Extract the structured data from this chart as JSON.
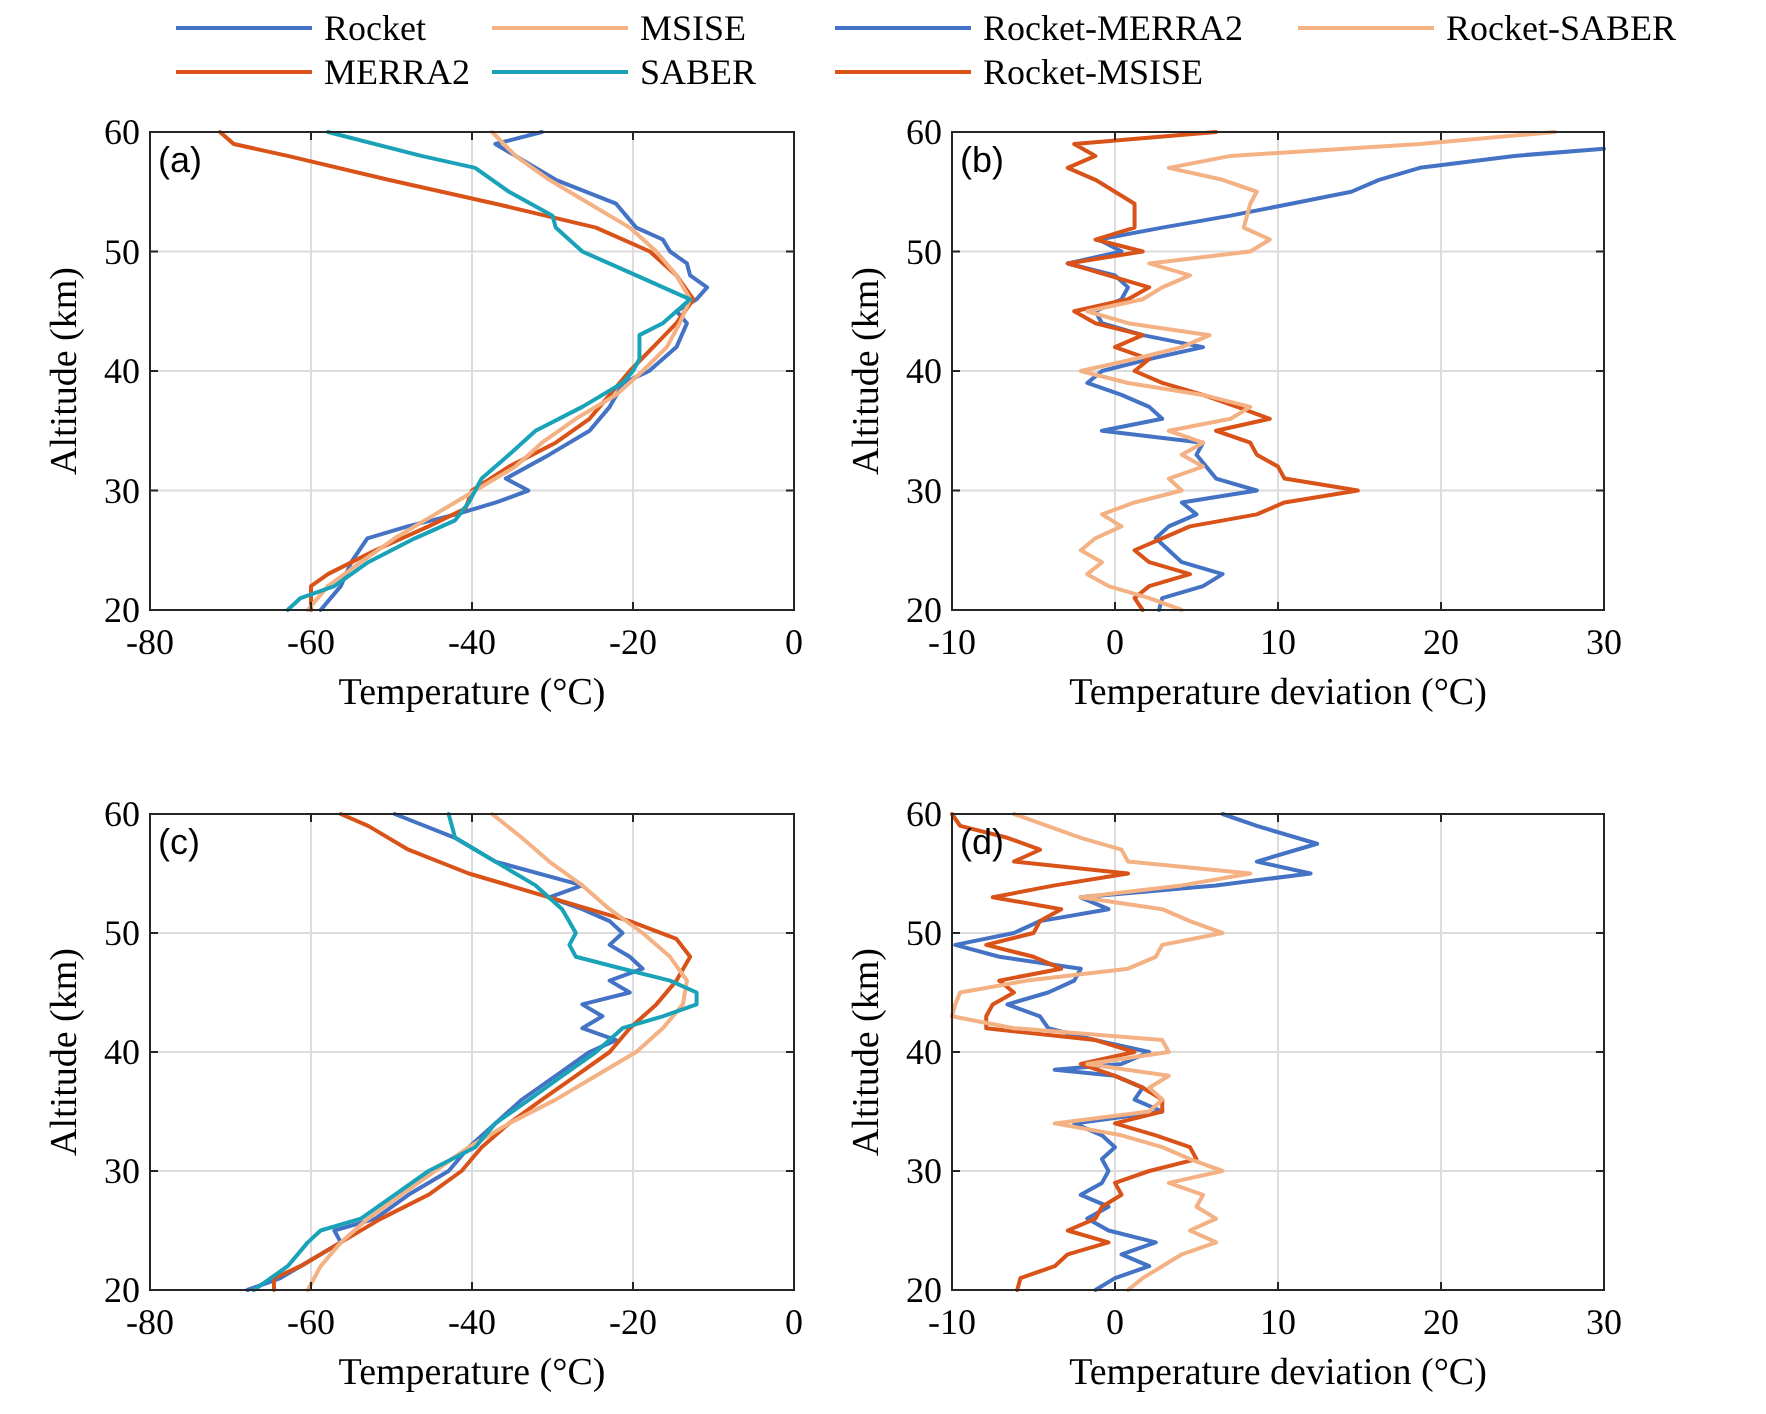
{
  "chart_data": [
    {
      "type": "line",
      "xlabel": "Temperature (°C)",
      "ylabel": "Altitude (km)",
      "annotations": [
        "(a)"
      ],
      "xlim": [
        -80,
        0
      ],
      "xticks": [
        -80,
        -60,
        -40,
        -20,
        0
      ],
      "ylim": [
        20,
        60
      ],
      "yticks": [
        20,
        30,
        40,
        50,
        60
      ],
      "grid": true,
      "legend": "top",
      "line_style": "solid",
      "series": [
        {
          "name": "Rocket",
          "color": "#4472c4",
          "x": [
            -58.8,
            -56.3,
            -55,
            -53,
            -48,
            -42,
            -37,
            -33,
            -35.8,
            -30.4,
            -25.4,
            -22.9,
            -21.2,
            -18,
            -14.6,
            -13.3,
            -14.6,
            -12.1,
            -10.8,
            -12.9,
            -13.3,
            -15.4,
            -16.3,
            -19.6,
            -22.1,
            -29.6,
            -34.6,
            -37.1,
            -31.3
          ],
          "values": [
            20,
            22,
            24,
            26,
            27,
            28,
            29,
            30,
            31,
            33,
            35,
            37,
            39,
            40,
            42,
            44,
            45,
            46,
            47,
            48,
            49,
            50,
            51,
            52,
            54,
            56,
            58,
            59,
            60
          ]
        },
        {
          "name": "MERRA2",
          "color": "#d95319",
          "x": [
            -60,
            -60,
            -57.9,
            -52,
            -45.4,
            -40.8,
            -40,
            -35.4,
            -29.6,
            -25.4,
            -22.9,
            -20.4,
            -17.5,
            -14.6,
            -12.5,
            -14.6,
            -17.9,
            -24.6,
            -37.1,
            -50.4,
            -62.9,
            -69.6,
            -71.3
          ],
          "values": [
            20,
            22,
            23,
            25,
            27,
            28.5,
            30,
            32,
            34,
            36,
            38,
            40,
            42,
            44,
            46,
            48,
            50,
            52,
            54,
            56,
            58,
            59,
            60
          ]
        },
        {
          "name": "MSISE",
          "color": "#f4b183",
          "x": [
            -60.4,
            -57.9,
            -53.8,
            -49.6,
            -44.6,
            -39.6,
            -34.6,
            -31.3,
            -27.1,
            -22.1,
            -18.8,
            -15.8,
            -14.2,
            -12.9,
            -14.6,
            -17.1,
            -20.4,
            -25.4,
            -30.4,
            -34.6,
            -37.5
          ],
          "values": [
            20,
            22,
            24,
            26,
            28,
            30,
            32,
            34,
            36,
            38,
            40,
            42,
            44,
            46,
            48,
            50,
            52,
            54,
            56,
            58,
            60
          ]
        },
        {
          "name": "SABER",
          "color": "#1aa3b8",
          "x": [
            -62.9,
            -61.3,
            -57.1,
            -52.9,
            -47.1,
            -42.1,
            -40.4,
            -38.8,
            -35.4,
            -32.1,
            -26.3,
            -21.3,
            -20,
            -19.2,
            -19.2,
            -16.3,
            -12.9,
            -19.6,
            -26.3,
            -29.6,
            -30,
            -35.4,
            -39.6,
            -46.3,
            -57.9
          ],
          "values": [
            20,
            21,
            22,
            24,
            26,
            27.5,
            29,
            31,
            33,
            35,
            37,
            39,
            40,
            41,
            43,
            44,
            46,
            48,
            50,
            52,
            53,
            55,
            57,
            58,
            60
          ]
        }
      ]
    },
    {
      "type": "line",
      "xlabel": "Temperature deviation (°C)",
      "ylabel": "Altitude (km)",
      "annotations": [
        "(b)"
      ],
      "xlim": [
        -10,
        30
      ],
      "xticks": [
        -10,
        0,
        10,
        20,
        30
      ],
      "ylim": [
        20,
        60
      ],
      "yticks": [
        20,
        30,
        40,
        50,
        60
      ],
      "grid": true,
      "legend": "top",
      "line_style": "solid",
      "series": [
        {
          "name": "Rocket-MERRA2",
          "color": "#4472c4",
          "x": [
            2.7,
            2.9,
            5.4,
            6.6,
            4.1,
            2.5,
            3.3,
            5,
            4.1,
            8.7,
            6.2,
            5,
            5.4,
            -0.8,
            2.9,
            2.1,
            0.4,
            -1.7,
            -0.8,
            2.1,
            5.4,
            1.7,
            -0.8,
            -1.2,
            0.4,
            0.8,
            0,
            -2.9,
            0.4,
            -1,
            2.9,
            7.1,
            10.8,
            14.5,
            16.2,
            18.7,
            24.5,
            30
          ],
          "values": [
            20,
            21,
            22,
            23,
            24,
            26,
            27,
            28,
            29,
            30,
            31,
            33,
            34,
            35,
            36,
            37,
            38,
            39,
            40,
            41,
            42,
            43,
            44,
            45,
            46,
            47,
            48,
            49,
            50,
            51,
            52,
            53,
            54,
            55,
            56,
            57,
            58,
            58.6
          ]
        },
        {
          "name": "Rocket-MSISE",
          "color": "#d95319",
          "x": [
            1.7,
            1.2,
            2.1,
            4.6,
            2.1,
            1.2,
            2.9,
            4.6,
            8.7,
            10.4,
            14.9,
            10.4,
            10,
            8.7,
            8.3,
            6.2,
            9.5,
            7.5,
            5.4,
            2.9,
            1.2,
            2.1,
            0,
            1.7,
            -1.2,
            -2.5,
            0.8,
            2.1,
            -0.4,
            -2.9,
            1.7,
            -1.2,
            1.2,
            1.2,
            -1.2,
            -2.9,
            -1.2,
            -2.5,
            6.2
          ],
          "values": [
            20,
            21,
            22,
            23,
            24,
            25,
            26,
            27,
            28,
            29,
            30,
            31,
            32,
            33,
            34,
            35,
            36,
            37,
            38,
            39,
            40,
            41,
            42,
            43,
            44,
            45,
            46,
            47,
            48,
            49,
            50,
            51,
            52,
            54,
            56,
            57,
            58,
            59,
            60
          ]
        },
        {
          "name": "Rocket-SABER",
          "color": "#f4b183",
          "x": [
            4.1,
            2.1,
            -0.4,
            -1.7,
            -0.8,
            -2.1,
            -1.2,
            0.4,
            -0.8,
            1.2,
            4.1,
            3.3,
            5.4,
            4.1,
            5.4,
            3.3,
            7.1,
            8.3,
            5.4,
            0.8,
            -2.1,
            1.2,
            4.1,
            5.8,
            0.8,
            -1.7,
            1.7,
            2.9,
            4.6,
            2.1,
            8.3,
            9.5,
            7.9,
            8.3,
            8.7,
            6.6,
            3.3,
            7.1,
            18.7,
            27
          ],
          "values": [
            20,
            21,
            22,
            23,
            24,
            25,
            26,
            27,
            28,
            29,
            30,
            31,
            32,
            33,
            34,
            35,
            36,
            37,
            38,
            39,
            40,
            41,
            42,
            43,
            44,
            45,
            46,
            47,
            48,
            49,
            50,
            51,
            52,
            54,
            55,
            56,
            57,
            58,
            59,
            60
          ]
        }
      ]
    },
    {
      "type": "line",
      "xlabel": "Temperature (°C)",
      "ylabel": "Altitude (km)",
      "annotations": [
        "(c)"
      ],
      "xlim": [
        -80,
        0
      ],
      "xticks": [
        -80,
        -60,
        -40,
        -20,
        0
      ],
      "ylim": [
        20,
        60
      ],
      "yticks": [
        20,
        30,
        40,
        50,
        60
      ],
      "grid": true,
      "legend": false,
      "line_style": "solid",
      "series": [
        {
          "color": "#4472c4",
          "x": [
            -67.9,
            -63.8,
            -61.3,
            -56.3,
            -57.1,
            -52,
            -47.9,
            -42.9,
            -40.4,
            -37.1,
            -33.8,
            -29.6,
            -25.4,
            -22.1,
            -26.3,
            -23.8,
            -26.3,
            -20.4,
            -22.9,
            -18.8,
            -20.4,
            -22.9,
            -21.3,
            -22.9,
            -26.3,
            -30.4,
            -26.3,
            -37.1,
            -42.1,
            -49.6
          ],
          "values": [
            20,
            21,
            22,
            24,
            25,
            26,
            28,
            30,
            32,
            34,
            36,
            38,
            40,
            41,
            42,
            43,
            44,
            45,
            46,
            47,
            48,
            49,
            50,
            51,
            52,
            53,
            54,
            56,
            58,
            60
          ]
        },
        {
          "color": "#d95319",
          "x": [
            -64.6,
            -64.6,
            -61.3,
            -56.3,
            -51.3,
            -45.4,
            -41.3,
            -38.8,
            -35.4,
            -31.3,
            -27.1,
            -22.9,
            -20.4,
            -17.1,
            -14.6,
            -12.9,
            -14.6,
            -20.4,
            -30.4,
            -40.4,
            -47.9,
            -52.9,
            -56.3
          ],
          "values": [
            20,
            21,
            22,
            24,
            26,
            28,
            30,
            32,
            34,
            36,
            38,
            40,
            42,
            44,
            46,
            48,
            49.5,
            51,
            53,
            55,
            57,
            59,
            60
          ]
        },
        {
          "color": "#f4b183",
          "x": [
            -60.4,
            -58.8,
            -56.3,
            -52.9,
            -48.8,
            -44.6,
            -40.4,
            -35.4,
            -29.6,
            -24.6,
            -19.6,
            -16.3,
            -13.8,
            -13.3,
            -15.4,
            -18.8,
            -22.9,
            -26.3,
            -30.4,
            -33.8,
            -37.5
          ],
          "values": [
            20,
            22,
            24,
            26,
            28,
            30,
            32,
            34,
            36,
            38,
            40,
            42,
            44,
            46,
            48,
            50,
            52,
            54,
            56,
            58,
            60
          ]
        },
        {
          "color": "#1aa3b8",
          "x": [
            -67.1,
            -62.9,
            -60.4,
            -58.8,
            -53.8,
            -49.6,
            -45.4,
            -39.6,
            -37.1,
            -32.9,
            -28.8,
            -24.6,
            -21.3,
            -16.3,
            -12.1,
            -12.1,
            -15.4,
            -21.3,
            -27.1,
            -27.9,
            -27.1,
            -28.8,
            -32.1,
            -37.1,
            -42.1,
            -42.9
          ],
          "values": [
            20,
            22,
            24,
            25,
            26,
            28,
            30,
            32,
            34,
            36,
            38,
            40,
            42,
            43,
            44,
            45,
            46,
            47,
            48,
            49,
            50,
            52,
            54,
            56,
            58,
            60
          ]
        }
      ]
    },
    {
      "type": "line",
      "xlabel": "Temperature deviation (°C)",
      "ylabel": "Altitude (km)",
      "annotations": [
        "(d)"
      ],
      "xlim": [
        -10,
        30
      ],
      "xticks": [
        -10,
        0,
        10,
        20,
        30
      ],
      "ylim": [
        20,
        60
      ],
      "yticks": [
        20,
        30,
        40,
        50,
        60
      ],
      "grid": true,
      "legend": false,
      "line_style": "solid",
      "series": [
        {
          "color": "#4472c4",
          "x": [
            -1.2,
            0,
            2.1,
            0.4,
            2.5,
            -0.4,
            -1.7,
            -0.4,
            -2.1,
            -0.8,
            -0.4,
            -0.8,
            0,
            -0.8,
            -2.5,
            2.9,
            1.2,
            1.7,
            0,
            -3.7,
            0.4,
            2.1,
            -1.2,
            -4.1,
            -4.6,
            -6.6,
            -4.1,
            -2.5,
            -2.1,
            -7.1,
            -9.8,
            -6.2,
            -4.6,
            -0.4,
            -2.1,
            6.2,
            12,
            8.7,
            12.4,
            8.7,
            6.6
          ],
          "values": [
            20,
            21,
            22,
            23,
            24,
            25,
            26,
            27,
            28,
            29,
            30,
            31,
            32,
            33,
            34,
            35,
            36,
            37,
            38,
            38.5,
            39,
            40,
            41,
            42,
            43,
            44,
            45,
            46,
            47,
            48,
            49,
            50,
            51,
            52,
            53,
            54,
            55,
            56,
            57.5,
            59,
            60
          ]
        },
        {
          "color": "#d95319",
          "x": [
            -6,
            -5.8,
            -3.7,
            -2.9,
            -0.4,
            -2.9,
            -1.2,
            -0.8,
            0.4,
            0,
            2.1,
            5,
            4.6,
            2.5,
            0,
            2.9,
            2.9,
            1.7,
            0,
            -2.1,
            1.2,
            -1.2,
            -7.9,
            -7.9,
            -7.5,
            -6.2,
            -7.1,
            -3.3,
            -5,
            -7.9,
            -5,
            -4.6,
            -3.3,
            -7.5,
            -3.7,
            0.8,
            -6.2,
            -4.6,
            -6.6,
            -9.5,
            -10
          ],
          "values": [
            20,
            21,
            22,
            23,
            24,
            25,
            26,
            27,
            28,
            29,
            30,
            31,
            32,
            33,
            34,
            35,
            36,
            37,
            38,
            39,
            40,
            41,
            42,
            43,
            44,
            45,
            46,
            47,
            48,
            49,
            50,
            51,
            52,
            53,
            54,
            55,
            56,
            57,
            58,
            59,
            60
          ]
        },
        {
          "color": "#f4b183",
          "x": [
            0.8,
            1.7,
            2.9,
            4.1,
            6.2,
            4.6,
            6.2,
            5,
            5.4,
            3.3,
            6.6,
            4.6,
            2.9,
            0.4,
            -3.7,
            2.1,
            2.9,
            2.1,
            3.3,
            -1.7,
            3.3,
            2.9,
            -6.2,
            -10,
            -9.8,
            -9.5,
            -5.4,
            0.8,
            2.5,
            2.9,
            6.6,
            4.6,
            2.9,
            -2.1,
            4.1,
            8.3,
            0.8,
            0.4,
            -2.1,
            -6.2
          ],
          "values": [
            20,
            21,
            22,
            23,
            24,
            25,
            26,
            27,
            28,
            29,
            30,
            31,
            32,
            33,
            34,
            35,
            36,
            37,
            38,
            39,
            40,
            41,
            42,
            43,
            44,
            45,
            46,
            47,
            48,
            49,
            50,
            51,
            52,
            53,
            54,
            55,
            56,
            57,
            58,
            60
          ]
        }
      ]
    }
  ]
}
